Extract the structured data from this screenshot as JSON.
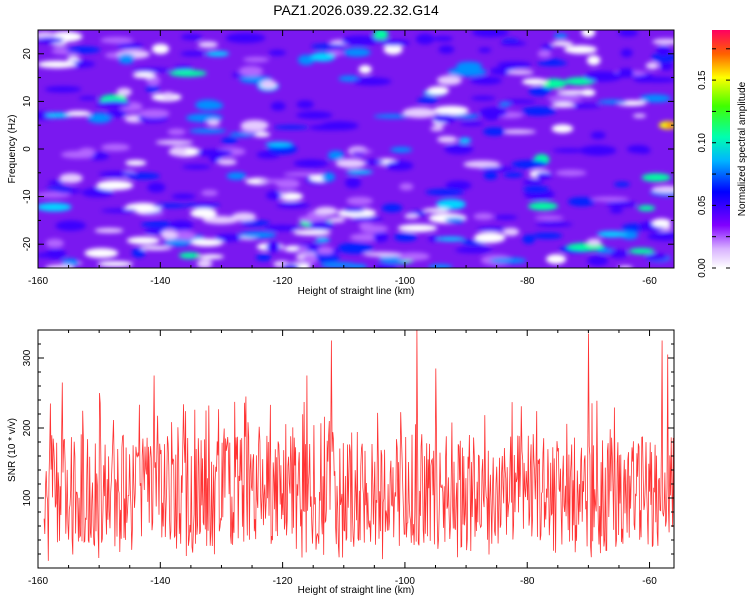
{
  "title": "PAZ1.2026.039.22.32.G14",
  "chart_data": [
    {
      "type": "heatmap",
      "title": "PAZ1.2026.039.22.32.G14",
      "xlabel": "Height of straight line (km)",
      "ylabel": "Frequency (Hz)",
      "xlim": [
        -160,
        -56
      ],
      "ylim": [
        -25,
        25
      ],
      "x_ticks": [
        "-160",
        "-140",
        "-120",
        "-100",
        "-80",
        "-60"
      ],
      "y_ticks": [
        "-20",
        "-10",
        "0",
        "10",
        "20"
      ],
      "colorbar": {
        "label": "Normalized spectral amplitude",
        "range": [
          0,
          0.19
        ],
        "ticks": [
          "0.00",
          "0.05",
          "0.10",
          "0.15"
        ]
      },
      "peak_amplitude": 0.19,
      "peak_location": {
        "x": -57,
        "y": 5
      }
    },
    {
      "type": "line",
      "xlabel": "Height of straight line (km)",
      "ylabel": "SNR (10 * v/v)",
      "xlim": [
        -160,
        -56
      ],
      "ylim": [
        0,
        340
      ],
      "x_ticks": [
        "-160",
        "-140",
        "-120",
        "-100",
        "-80",
        "-60"
      ],
      "y_ticks": [
        "100",
        "200",
        "300"
      ],
      "color": "#ff3333",
      "series": [
        {
          "name": "SNR",
          "x_start": -159,
          "x_end": -56,
          "n_points": 900,
          "typical_range": [
            30,
            190
          ],
          "peaks": [
            [
              -158,
              235
            ],
            [
              -156,
              265
            ],
            [
              -150,
              250
            ],
            [
              -141,
              275
            ],
            [
              -126,
              245
            ],
            [
              -116,
              275
            ],
            [
              -112,
              325
            ],
            [
              -98,
              340
            ],
            [
              -95,
              285
            ],
            [
              -70,
              335
            ],
            [
              -58,
              325
            ],
            [
              -57,
              305
            ]
          ]
        }
      ]
    }
  ]
}
